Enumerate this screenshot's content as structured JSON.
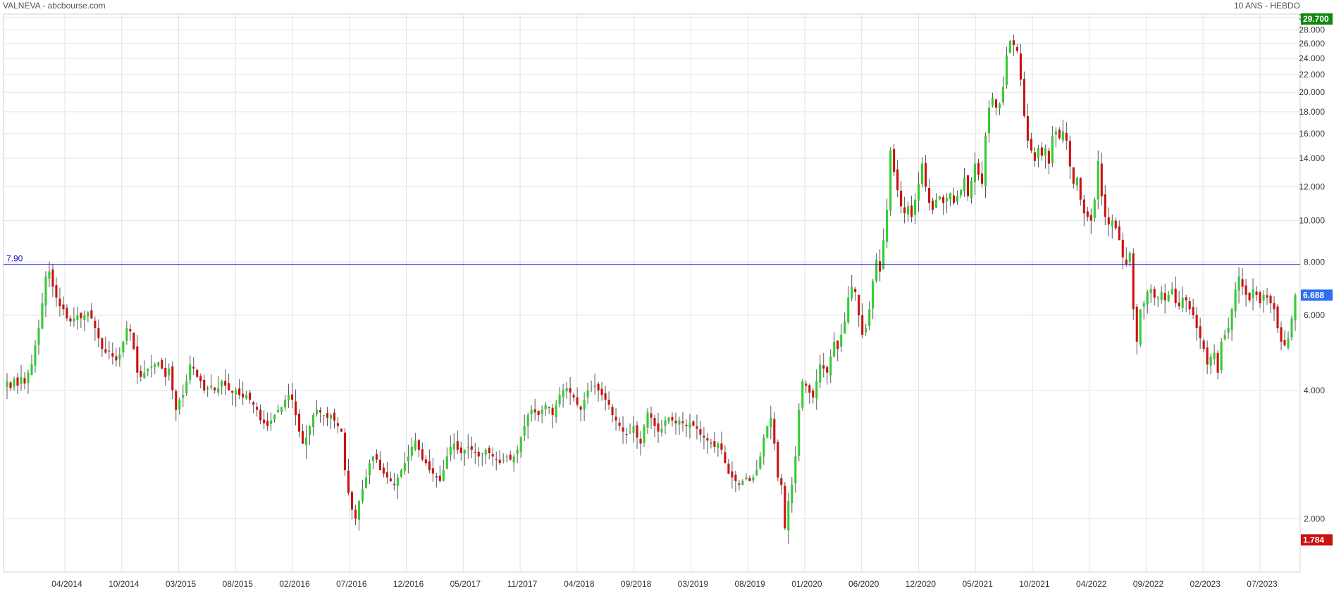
{
  "header": {
    "left": "VALNEVA - abcbourse.com",
    "right": "10 ANS - HEBDO"
  },
  "colors": {
    "up": "#33cc33",
    "down": "#cc1111",
    "grid": "#e3e3e3",
    "level_line": "#1010c8",
    "badge_high": "#118811",
    "badge_last": "#2f6fef",
    "badge_low": "#cc1111"
  },
  "chart_data": {
    "type": "candlestick",
    "title": "",
    "xlabel": "",
    "ylabel": "",
    "y_scale": "log",
    "ylim": [
      1.5,
      30.5
    ],
    "grid": true,
    "y_ticks": [
      {
        "value": 2,
        "label": "2.000"
      },
      {
        "value": 4,
        "label": "4.000"
      },
      {
        "value": 6,
        "label": "6.000"
      },
      {
        "value": 8,
        "label": "8.000"
      },
      {
        "value": 10,
        "label": "10.000"
      },
      {
        "value": 12,
        "label": "12.000"
      },
      {
        "value": 14,
        "label": "14.000"
      },
      {
        "value": 16,
        "label": "16.000"
      },
      {
        "value": 18,
        "label": "18.000"
      },
      {
        "value": 20,
        "label": "20.000"
      },
      {
        "value": 22,
        "label": "22.000"
      },
      {
        "value": 24,
        "label": "24.000"
      },
      {
        "value": 26,
        "label": "26.000"
      },
      {
        "value": 28,
        "label": "28.000"
      },
      {
        "value": 30,
        "label": "30.000"
      }
    ],
    "x_ticks": [
      "04/2014",
      "10/2014",
      "03/2015",
      "08/2015",
      "02/2016",
      "07/2016",
      "12/2016",
      "05/2017",
      "11/2017",
      "04/2018",
      "09/2018",
      "03/2019",
      "08/2019",
      "01/2020",
      "06/2020",
      "12/2020",
      "05/2021",
      "10/2021",
      "04/2022",
      "09/2022",
      "02/2023",
      "07/2023"
    ],
    "price_badges": {
      "high": {
        "value": 29.7,
        "label": "29.700"
      },
      "last": {
        "value": 6.688,
        "label": "6.688"
      },
      "low": {
        "value": 1.784,
        "label": "1.784"
      }
    },
    "horizontal_level": {
      "value": 7.9,
      "label": "7.90"
    },
    "series": [
      {
        "name": "VALNEVA",
        "period": "weekly",
        "closes": [
          4.2,
          4.05,
          4.25,
          4.1,
          4.3,
          4.15,
          4.4,
          4.6,
          5.1,
          5.6,
          6.4,
          7.4,
          7.6,
          7.0,
          6.6,
          6.3,
          6.2,
          5.9,
          5.8,
          5.9,
          6.0,
          5.9,
          6.0,
          6.1,
          5.9,
          5.6,
          5.3,
          5.0,
          4.9,
          4.95,
          4.8,
          4.7,
          4.85,
          5.2,
          5.6,
          5.5,
          5.0,
          4.4,
          4.3,
          4.4,
          4.5,
          4.55,
          4.6,
          4.65,
          4.5,
          4.3,
          4.5,
          4.0,
          3.6,
          3.8,
          3.9,
          4.2,
          4.6,
          4.5,
          4.3,
          4.2,
          4.0,
          4.05,
          4.1,
          4.0,
          4.05,
          4.2,
          4.1,
          4.0,
          3.95,
          4.0,
          3.9,
          3.85,
          3.9,
          3.8,
          3.7,
          3.6,
          3.4,
          3.35,
          3.3,
          3.4,
          3.5,
          3.6,
          3.65,
          3.8,
          3.9,
          3.8,
          3.5,
          3.2,
          3.0,
          3.1,
          3.3,
          3.5,
          3.6,
          3.55,
          3.5,
          3.45,
          3.5,
          3.4,
          3.3,
          3.2,
          2.6,
          2.3,
          2.1,
          2.0,
          2.2,
          2.35,
          2.5,
          2.7,
          2.8,
          2.75,
          2.6,
          2.55,
          2.5,
          2.45,
          2.4,
          2.5,
          2.6,
          2.7,
          2.8,
          2.95,
          3.05,
          2.9,
          2.75,
          2.7,
          2.6,
          2.55,
          2.5,
          2.45,
          2.6,
          2.8,
          2.95,
          3.0,
          2.9,
          2.85,
          2.9,
          2.95,
          2.9,
          2.85,
          2.8,
          2.85,
          2.9,
          2.85,
          2.8,
          2.75,
          2.7,
          2.75,
          2.8,
          2.75,
          2.8,
          2.9,
          3.1,
          3.3,
          3.5,
          3.6,
          3.55,
          3.5,
          3.6,
          3.7,
          3.65,
          3.5,
          3.7,
          3.9,
          4.0,
          4.05,
          3.95,
          3.85,
          3.7,
          3.6,
          3.8,
          4.0,
          4.05,
          4.1,
          4.0,
          3.9,
          3.8,
          3.7,
          3.5,
          3.4,
          3.3,
          3.2,
          3.15,
          3.2,
          3.3,
          3.1,
          3.0,
          3.3,
          3.55,
          3.45,
          3.3,
          3.2,
          3.25,
          3.4,
          3.45,
          3.4,
          3.35,
          3.4,
          3.35,
          3.3,
          3.35,
          3.3,
          3.25,
          3.15,
          3.1,
          3.05,
          3.0,
          2.95,
          3.0,
          2.9,
          2.7,
          2.55,
          2.5,
          2.45,
          2.4,
          2.45,
          2.5,
          2.45,
          2.5,
          2.6,
          2.8,
          3.1,
          3.3,
          3.45,
          3.0,
          2.5,
          2.4,
          1.9,
          2.2,
          2.4,
          2.8,
          3.6,
          4.2,
          4.1,
          3.95,
          3.85,
          4.2,
          4.6,
          4.5,
          4.4,
          4.8,
          5.2,
          5.0,
          5.4,
          5.8,
          6.6,
          7.0,
          6.8,
          6.0,
          5.4,
          5.6,
          6.2,
          7.2,
          8.1,
          7.6,
          9.0,
          10.6,
          14.6,
          13.0,
          11.8,
          10.8,
          10.4,
          10.8,
          10.2,
          11.2,
          12.2,
          13.6,
          12.0,
          11.0,
          10.6,
          11.2,
          11.4,
          11.0,
          11.3,
          11.6,
          11.0,
          11.4,
          11.8,
          12.6,
          11.4,
          12.4,
          13.6,
          12.8,
          12.2,
          15.8,
          18.4,
          19.4,
          18.4,
          18.8,
          20.6,
          24.4,
          26.4,
          25.8,
          25.0,
          21.4,
          17.6,
          15.4,
          14.6,
          13.8,
          14.8,
          14.2,
          14.8,
          13.6,
          15.8,
          16.2,
          15.6,
          16.2,
          15.4,
          13.4,
          12.2,
          12.6,
          11.2,
          10.4,
          10.2,
          10.0,
          11.2,
          13.8,
          11.4,
          10.2,
          9.8,
          10.0,
          9.6,
          9.0,
          8.2,
          7.9,
          8.4,
          6.2,
          5.2,
          6.2,
          6.4,
          6.8,
          6.9,
          6.6,
          6.6,
          6.8,
          6.5,
          6.7,
          6.9,
          6.4,
          6.3,
          6.6,
          6.5,
          6.2,
          6.0,
          5.6,
          5.3,
          5.0,
          4.6,
          4.8,
          4.9,
          4.4,
          5.2,
          5.4,
          5.6,
          6.2,
          6.9,
          7.4,
          7.0,
          6.7,
          6.5,
          6.9,
          6.7,
          6.4,
          6.7,
          6.6,
          6.4,
          6.2,
          5.6,
          5.2,
          5.1,
          5.3,
          5.9,
          6.688
        ]
      }
    ]
  }
}
